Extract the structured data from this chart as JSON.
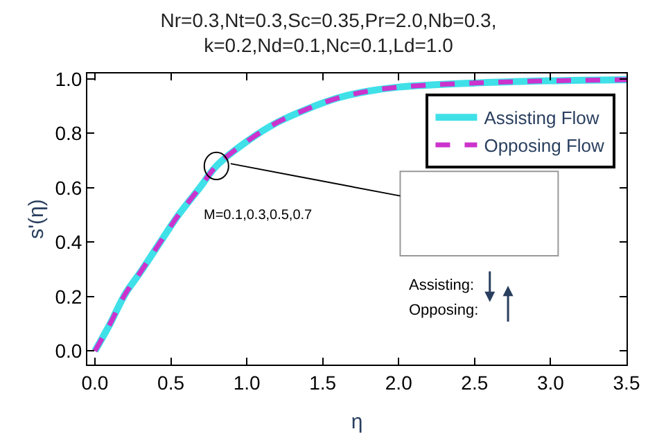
{
  "chart_data": {
    "type": "line",
    "title": "Nr=0.3,Nt=0.3,Sc=0.35,Pr=2.0,Nb=0.3,\nk=0.2,Nd=0.1,Nc=0.1,Ld=1.0",
    "xlabel": "η",
    "ylabel": "s'(η)",
    "x": [
      0,
      0.1,
      0.2,
      0.3,
      0.43,
      0.55,
      0.69,
      0.8,
      1.0,
      1.2,
      1.4,
      1.6,
      1.8,
      2.0,
      2.5,
      3.0,
      3.5
    ],
    "series": [
      {
        "name": "Assisting Flow",
        "color": "#40e0e8",
        "line_style": "solid",
        "values": [
          0,
          0.1,
          0.21,
          0.29,
          0.4,
          0.5,
          0.6,
          0.68,
          0.77,
          0.84,
          0.89,
          0.93,
          0.955,
          0.97,
          0.985,
          0.993,
          0.997
        ]
      },
      {
        "name": "Opposing Flow",
        "color": "#cc33cc",
        "line_style": "dashed",
        "values": [
          0,
          0.1,
          0.21,
          0.29,
          0.4,
          0.5,
          0.6,
          0.68,
          0.77,
          0.84,
          0.89,
          0.93,
          0.955,
          0.97,
          0.985,
          0.993,
          0.997
        ]
      }
    ],
    "annotations": [
      "M=0.1,0.3,0.5,0.7",
      "Assisting:",
      "Opposing:"
    ],
    "xlim": [
      -0.05,
      3.5
    ],
    "ylim": [
      -0.05,
      1.02
    ],
    "xticks": [
      {
        "value": 0,
        "label": "0.0"
      },
      0.5,
      {
        "value": 1,
        "label": "1.0"
      },
      1.5,
      {
        "value": 2,
        "label": "2.0"
      },
      2.5,
      {
        "value": 3,
        "label": "3.0"
      },
      3.5
    ],
    "yticks": [
      {
        "value": 0,
        "label": "0.0"
      },
      0.2,
      0.4,
      0.6,
      0.8,
      {
        "value": 1,
        "label": "1.0"
      }
    ],
    "legend": "top right",
    "marker": "none"
  }
}
